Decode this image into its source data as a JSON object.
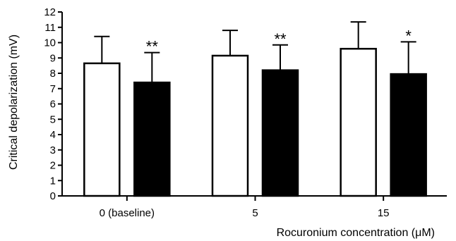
{
  "chart_data": {
    "type": "bar",
    "title": "",
    "xlabel": "Rocuronium concentration (μM)",
    "ylabel": "Critical depolarization (mV)",
    "ylim": [
      0,
      12
    ],
    "yticks": [
      0,
      1,
      2,
      3,
      4,
      5,
      6,
      7,
      8,
      9,
      10,
      11,
      12
    ],
    "categories": [
      "0 (baseline)",
      "5",
      "15"
    ],
    "series": [
      {
        "color": "#ffffff",
        "values": [
          8.65,
          9.15,
          9.6
        ],
        "error_upper": [
          1.75,
          1.65,
          1.75
        ]
      },
      {
        "color": "#000000",
        "values": [
          7.4,
          8.2,
          7.95
        ],
        "error_upper": [
          1.95,
          1.65,
          2.1
        ]
      }
    ],
    "significance": [
      "**",
      "**",
      "*"
    ],
    "grid": false,
    "legend": "none"
  }
}
